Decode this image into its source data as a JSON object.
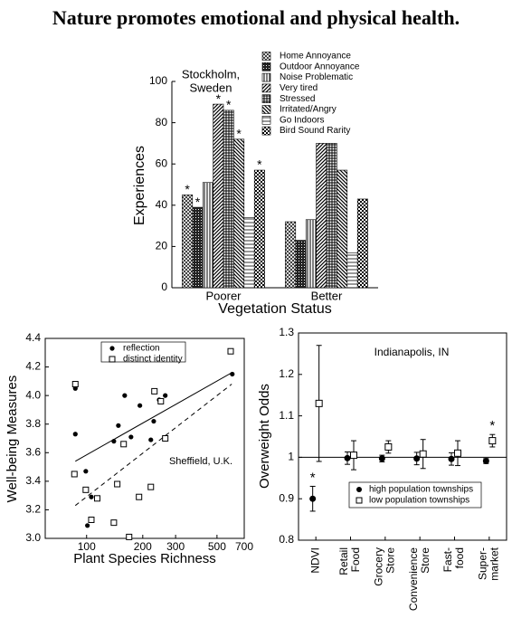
{
  "title": "Nature promotes emotional and physical health.",
  "chart_data": [
    {
      "type": "bar",
      "annotation": [
        "Stockholm,",
        "Sweden"
      ],
      "x_label": "Vegetation Status",
      "y_label": "Experiences",
      "categories": [
        "Poorer",
        "Better"
      ],
      "ylim": [
        0,
        100
      ],
      "yticks": [
        0,
        20,
        40,
        60,
        80,
        100
      ],
      "series": [
        {
          "name": "Home Annoyance",
          "pattern": "crosshatch",
          "values": [
            45,
            32
          ],
          "significance": [
            "*",
            null
          ]
        },
        {
          "name": "Outdoor Annoyance",
          "pattern": "dark",
          "values": [
            39,
            23
          ],
          "significance": [
            "*",
            null
          ]
        },
        {
          "name": "Noise Problematic",
          "pattern": "vertical",
          "values": [
            51,
            33
          ],
          "significance": [
            null,
            null
          ]
        },
        {
          "name": "Very tired",
          "pattern": "diagonal",
          "values": [
            89,
            70
          ],
          "significance": [
            "*",
            null
          ]
        },
        {
          "name": "Stressed",
          "pattern": "grid",
          "values": [
            86,
            70
          ],
          "significance": [
            "*",
            null
          ]
        },
        {
          "name": "Irritated/Angry",
          "pattern": "backdiagonal",
          "values": [
            72,
            57
          ],
          "significance": [
            "*",
            null
          ]
        },
        {
          "name": "Go Indoors",
          "pattern": "horizontal",
          "values": [
            34,
            17
          ],
          "significance": [
            null,
            null
          ]
        },
        {
          "name": "Bird Sound Rarity",
          "pattern": "checker",
          "values": [
            57,
            43
          ],
          "significance": [
            "*",
            null
          ]
        }
      ]
    },
    {
      "type": "scatter",
      "annotation": "Sheffield, U.K.",
      "x_label": "Plant Species Richness",
      "y_label": "Well-being Measures",
      "log_x": true,
      "xlim": [
        60,
        700
      ],
      "xticks": [
        100,
        200,
        300,
        500,
        700
      ],
      "ylim": [
        3.0,
        4.4
      ],
      "yticks": [
        {
          "value": 3.0,
          "label": "3.0"
        },
        3.2,
        3.4,
        3.6,
        3.8,
        {
          "value": 4.0,
          "label": "4.0"
        },
        4.2,
        4.4
      ],
      "legend": "top-left",
      "series": [
        {
          "name": "reflection",
          "marker": "circle",
          "x": [
            87,
            87,
            99,
            101,
            106,
            140,
            148,
            160,
            173,
            193,
            221,
            229,
            245,
            264,
            604
          ],
          "y": [
            4.05,
            3.73,
            3.47,
            3.09,
            3.29,
            3.68,
            3.79,
            4.0,
            3.71,
            3.93,
            3.69,
            3.82,
            3.97,
            4.0,
            4.15
          ]
        },
        {
          "name": "distinct identity",
          "marker": "square",
          "x": [
            87,
            86,
            99,
            106,
            114,
            140,
            146,
            158,
            169,
            191,
            221,
            231,
            250,
            264,
            592
          ],
          "y": [
            4.08,
            3.45,
            3.34,
            3.13,
            3.28,
            3.11,
            3.38,
            3.66,
            3.01,
            3.29,
            3.36,
            4.03,
            3.96,
            3.7,
            4.31
          ]
        }
      ],
      "fit_lines": [
        {
          "x": [
            87,
            600
          ],
          "y": [
            3.54,
            4.16
          ],
          "dashed": false
        },
        {
          "x": [
            87,
            600
          ],
          "y": [
            3.23,
            4.08
          ],
          "dashed": true
        }
      ]
    },
    {
      "type": "errorbar",
      "annotation": "Indianapolis, IN",
      "y_label": "Overweight Odds",
      "categories": [
        [
          "NDVI"
        ],
        [
          "Retail",
          "Food"
        ],
        [
          "Grocery",
          "Store"
        ],
        [
          "Convenience",
          "Store"
        ],
        [
          "Fast-",
          "food"
        ],
        [
          "Super-",
          "market"
        ]
      ],
      "ylim": [
        0.8,
        1.3
      ],
      "yticks": [
        0.8,
        0.9,
        1,
        1.1,
        1.2,
        1.3
      ],
      "reference": 1,
      "legend": "bottom-right",
      "series": [
        {
          "name": "high population townships",
          "marker": "circle",
          "values": [
            0.9,
            0.998,
            0.997,
            0.997,
            0.996,
            0.991
          ],
          "errors": [
            0.03,
            0.015,
            0.008,
            0.015,
            0.015,
            0.006
          ],
          "significance": [
            "*",
            null,
            null,
            null,
            null,
            null
          ]
        },
        {
          "name": "low population townships",
          "marker": "square",
          "values": [
            1.13,
            1.005,
            1.025,
            1.008,
            1.01,
            1.04
          ],
          "errors": [
            0.14,
            0.035,
            0.015,
            0.035,
            0.03,
            0.015
          ],
          "significance": [
            null,
            null,
            null,
            null,
            null,
            "*"
          ]
        }
      ]
    }
  ]
}
